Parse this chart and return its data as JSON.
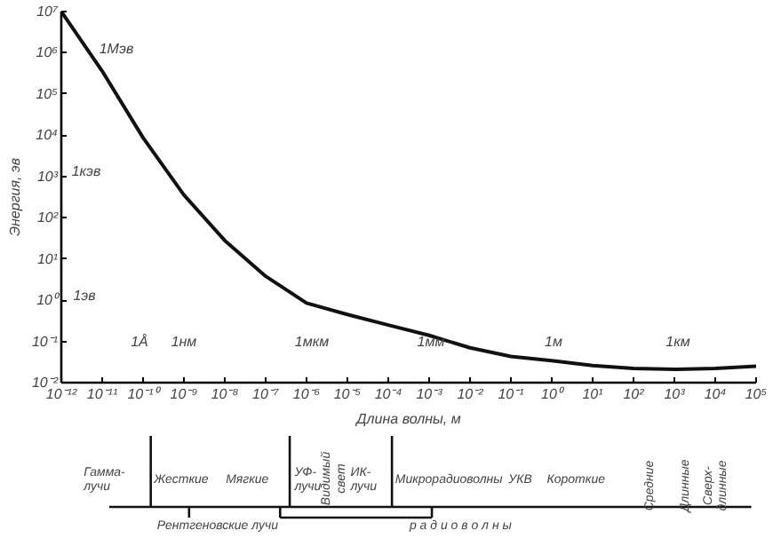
{
  "chart_data": [
    {
      "type": "line",
      "xlabel": "Длина волны, м",
      "ylabel": "Энергия, эв",
      "log": "xy",
      "grid": false,
      "marker": "none",
      "line_style": "solid",
      "x": [
        1e-12,
        1e-11,
        1e-10,
        1e-09,
        1e-08,
        1e-07,
        1e-06,
        1e-05,
        0.0001,
        0.001,
        0.01,
        0.1,
        1,
        10,
        100,
        1000,
        10000,
        100000
      ],
      "series": [
        {
          "color": "#111111",
          "values": [
            10000000.0,
            360000,
            8700,
            355,
            28,
            3.8,
            0.85,
            0.45,
            0.25,
            0.14,
            0.07,
            0.043,
            0.034,
            0.026,
            0.022,
            0.021,
            0.022,
            0.025
          ]
        }
      ],
      "xlim": [
        1e-12,
        100000.0
      ],
      "ylim": [
        0.01,
        10000000.0
      ],
      "xticks": [
        {
          "value": 1e-12,
          "label": "10⁻¹²"
        },
        {
          "value": 1e-11,
          "label": "10⁻¹¹"
        },
        {
          "value": 1e-10,
          "label": "10⁻¹⁰"
        },
        {
          "value": 1e-09,
          "label": "10⁻⁹"
        },
        {
          "value": 1e-08,
          "label": "10⁻⁸"
        },
        {
          "value": 1e-07,
          "label": "10⁻⁷"
        },
        {
          "value": 1e-06,
          "label": "10⁻⁶"
        },
        {
          "value": 1e-05,
          "label": "10⁻⁵"
        },
        {
          "value": 0.0001,
          "label": "10⁻⁴"
        },
        {
          "value": 0.001,
          "label": "10⁻³"
        },
        {
          "value": 0.01,
          "label": "10⁻²"
        },
        {
          "value": 0.1,
          "label": "10⁻¹"
        },
        {
          "value": 1,
          "label": "10⁰"
        },
        {
          "value": 10,
          "label": "10¹"
        },
        {
          "value": 100,
          "label": "10²"
        },
        {
          "value": 1000,
          "label": "10³"
        },
        {
          "value": 10000,
          "label": "10⁴"
        },
        {
          "value": 100000,
          "label": "10⁵"
        }
      ],
      "yticks": [
        {
          "value": 0.01,
          "label": "10⁻²"
        },
        {
          "value": 0.1,
          "label": "10⁻¹"
        },
        {
          "value": 1,
          "label": "10⁰"
        },
        {
          "value": 10,
          "label": "10¹"
        },
        {
          "value": 100,
          "label": "10²"
        },
        {
          "value": 1000,
          "label": "10³"
        },
        {
          "value": 10000,
          "label": "10⁴"
        },
        {
          "value": 100000,
          "label": "10⁵"
        },
        {
          "value": 1000000,
          "label": "10⁶"
        },
        {
          "value": 10000000,
          "label": "10⁷"
        }
      ],
      "annotations": [
        "1Мэв",
        "1кэв",
        "1эв",
        "1Å",
        "1нм",
        "1мкм",
        "1мм",
        "1м",
        "1км"
      ]
    },
    {
      "type": "other",
      "annotations": [
        "Гамма-\nлучи",
        "Жесткие",
        "Мягкие",
        "УФ-\nлучи",
        "Видимый\nсвет",
        "ИК-\nлучи",
        "Микрорадиоволны",
        "УКВ",
        "Короткие",
        "Средние",
        "Длинные",
        "Сверх-\nдлинные",
        "Рентгеновские лучи",
        "р а д и о в о л н ы"
      ]
    }
  ]
}
